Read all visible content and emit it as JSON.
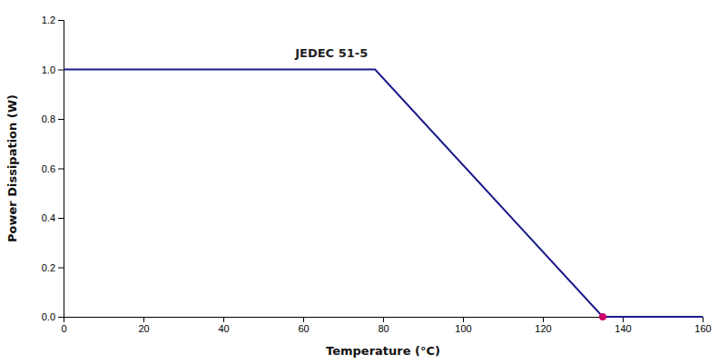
{
  "chart_data": {
    "type": "line",
    "xlabel": "Temperature (°C)",
    "ylabel": "Power Dissipation (W)",
    "series": [
      {
        "type": "line",
        "color": "#1a1a8c",
        "x": [
          0,
          78,
          135,
          160
        ],
        "values": [
          1.0,
          1.0,
          0.0,
          0.0
        ]
      },
      {
        "type": "scatter",
        "marker": "circle",
        "color": "#cc0066",
        "x": [
          135
        ],
        "values": [
          0.0
        ]
      }
    ],
    "annotations": [
      {
        "text": "JEDEC 51-5",
        "x": 58,
        "y": 1.04
      }
    ],
    "xlim": [
      0,
      160
    ],
    "ylim": [
      0,
      1.2
    ],
    "xticks": [
      0,
      20,
      40,
      60,
      80,
      100,
      120,
      140,
      160
    ],
    "yticks": [
      {
        "value": 0,
        "label": "0.0"
      },
      0.2,
      0.4,
      0.6,
      0.8,
      {
        "value": 1.0,
        "label": "1.0"
      },
      1.2
    ],
    "grid": false
  }
}
